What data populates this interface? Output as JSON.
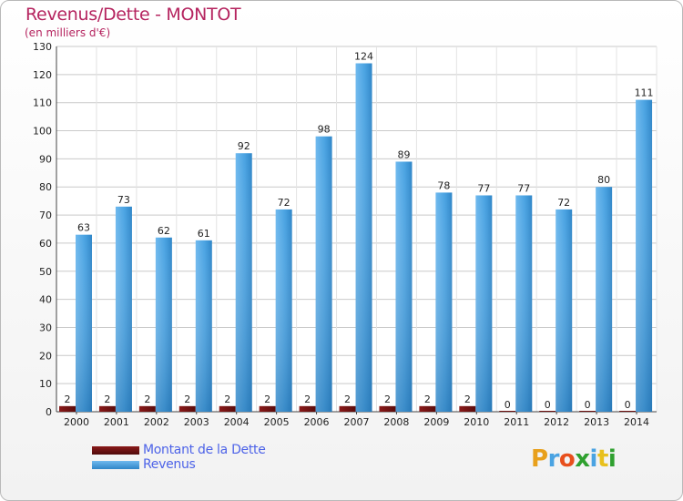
{
  "header": {
    "title": "Revenus/Dette - MONTOT",
    "subtitle": "(en milliers d'€)"
  },
  "legend": {
    "items": [
      {
        "label": "Montant de la Dette",
        "color": "#6b0f0f"
      },
      {
        "label": "Revenus",
        "color": "#3d9ad9"
      }
    ]
  },
  "logo": {
    "text": "Proxiti"
  },
  "chart_data": {
    "type": "bar",
    "categories": [
      "2000",
      "2001",
      "2002",
      "2003",
      "2004",
      "2005",
      "2006",
      "2007",
      "2008",
      "2009",
      "2010",
      "2011",
      "2012",
      "2013",
      "2014"
    ],
    "series": [
      {
        "name": "Montant de la Dette",
        "color": "#6b0f0f",
        "values": [
          2,
          2,
          2,
          2,
          2,
          2,
          2,
          2,
          2,
          2,
          2,
          0,
          0,
          0,
          0
        ]
      },
      {
        "name": "Revenus",
        "color": "#3d9ad9",
        "values": [
          63,
          73,
          62,
          61,
          92,
          72,
          98,
          124,
          89,
          78,
          77,
          77,
          72,
          80,
          111
        ]
      }
    ],
    "ylim": [
      0,
      130
    ],
    "yticks": [
      0,
      10,
      20,
      30,
      40,
      50,
      60,
      70,
      80,
      90,
      100,
      110,
      120,
      130
    ],
    "grid": true,
    "legend_position": "bottom-left"
  }
}
